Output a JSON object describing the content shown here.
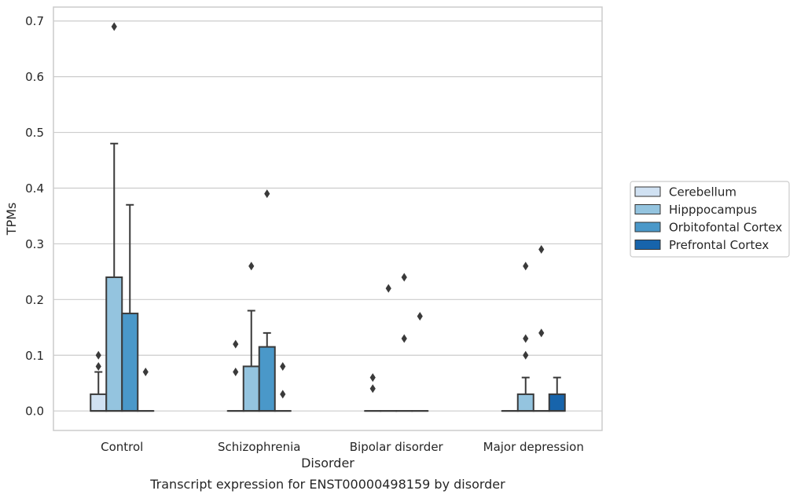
{
  "chart_data": {
    "type": "box",
    "xlabel": "Disorder",
    "ylabel": "TPMs",
    "caption": "Transcript expression for ENST00000498159 by disorder",
    "ylim": [
      -0.035,
      0.725
    ],
    "yticks": [
      0.0,
      0.1,
      0.2,
      0.3,
      0.4,
      0.5,
      0.6,
      0.7
    ],
    "ytick_labels": [
      "0.0",
      "0.1",
      "0.2",
      "0.3",
      "0.4",
      "0.5",
      "0.6",
      "0.7"
    ],
    "grid": "horizontal",
    "legend_position": "right",
    "categories": [
      "Control",
      "Schizophrenia",
      "Bipolar disorder",
      "Major depression"
    ],
    "series": [
      {
        "name": "Cerebellum",
        "color": "#d0e1f2",
        "boxes": [
          {
            "q1": 0.0,
            "median": 0.0,
            "q3": 0.03,
            "whisker_low": 0.0,
            "whisker_high": 0.07,
            "fliers": [
              0.08,
              0.1
            ]
          },
          {
            "q1": 0.0,
            "median": 0.0,
            "q3": 0.0,
            "whisker_low": 0.0,
            "whisker_high": 0.0,
            "fliers": [
              0.07,
              0.12
            ]
          },
          {
            "q1": 0.0,
            "median": 0.0,
            "q3": 0.0,
            "whisker_low": 0.0,
            "whisker_high": 0.0,
            "fliers": [
              0.04,
              0.06
            ]
          },
          {
            "q1": 0.0,
            "median": 0.0,
            "q3": 0.0,
            "whisker_low": 0.0,
            "whisker_high": 0.0,
            "fliers": []
          }
        ]
      },
      {
        "name": "Hipppocampus",
        "color": "#94c4df",
        "boxes": [
          {
            "q1": 0.0,
            "median": 0.0,
            "q3": 0.24,
            "whisker_low": 0.0,
            "whisker_high": 0.48,
            "fliers": [
              0.69
            ]
          },
          {
            "q1": 0.0,
            "median": 0.0,
            "q3": 0.08,
            "whisker_low": 0.0,
            "whisker_high": 0.18,
            "fliers": [
              0.26
            ]
          },
          {
            "q1": 0.0,
            "median": 0.0,
            "q3": 0.0,
            "whisker_low": 0.0,
            "whisker_high": 0.0,
            "fliers": [
              0.22
            ]
          },
          {
            "q1": 0.0,
            "median": 0.0,
            "q3": 0.03,
            "whisker_low": 0.0,
            "whisker_high": 0.06,
            "fliers": [
              0.1,
              0.13,
              0.26
            ]
          }
        ]
      },
      {
        "name": "Orbitofontal Cortex",
        "color": "#4a98c9",
        "boxes": [
          {
            "q1": 0.0,
            "median": 0.0,
            "q3": 0.175,
            "whisker_low": 0.0,
            "whisker_high": 0.37,
            "fliers": []
          },
          {
            "q1": 0.0,
            "median": 0.0,
            "q3": 0.115,
            "whisker_low": 0.0,
            "whisker_high": 0.14,
            "fliers": [
              0.39
            ]
          },
          {
            "q1": 0.0,
            "median": 0.0,
            "q3": 0.0,
            "whisker_low": 0.0,
            "whisker_high": 0.0,
            "fliers": [
              0.13,
              0.24
            ]
          },
          {
            "q1": 0.0,
            "median": 0.0,
            "q3": 0.0,
            "whisker_low": 0.0,
            "whisker_high": 0.0,
            "fliers": [
              0.14,
              0.29
            ]
          }
        ]
      },
      {
        "name": "Prefrontal Cortex",
        "color": "#1764ab",
        "boxes": [
          {
            "q1": 0.0,
            "median": 0.0,
            "q3": 0.0,
            "whisker_low": 0.0,
            "whisker_high": 0.0,
            "fliers": [
              0.07
            ]
          },
          {
            "q1": 0.0,
            "median": 0.0,
            "q3": 0.0,
            "whisker_low": 0.0,
            "whisker_high": 0.0,
            "fliers": [
              0.03,
              0.08
            ]
          },
          {
            "q1": 0.0,
            "median": 0.0,
            "q3": 0.0,
            "whisker_low": 0.0,
            "whisker_high": 0.0,
            "fliers": [
              0.17
            ]
          },
          {
            "q1": 0.0,
            "median": 0.0,
            "q3": 0.03,
            "whisker_low": 0.0,
            "whisker_high": 0.06,
            "fliers": []
          }
        ]
      }
    ]
  }
}
